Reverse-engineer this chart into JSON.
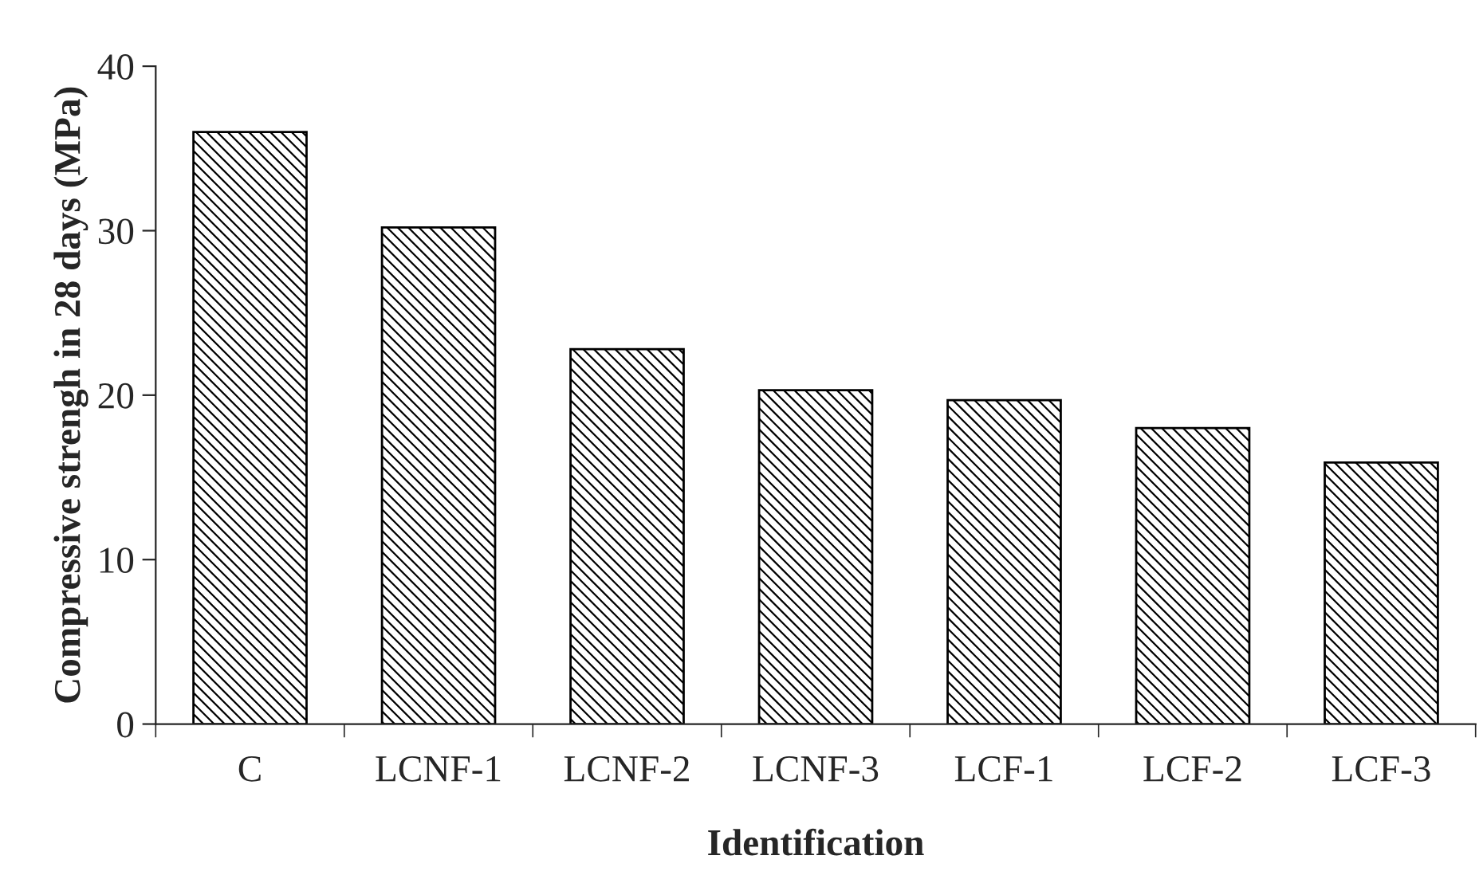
{
  "chart_data": {
    "type": "bar",
    "xlabel": "Identification",
    "ylabel": "Compressive strengh in 28 days (MPa)",
    "categories": [
      "C",
      "LCNF-1",
      "LCNF-2",
      "LCNF-3",
      "LCF-1",
      "LCF-2",
      "LCF-3"
    ],
    "values": [
      36.0,
      30.2,
      22.8,
      20.3,
      19.7,
      18.0,
      15.9
    ],
    "color": "#000000",
    "ylim": [
      0,
      40
    ],
    "yticks": [
      0,
      10,
      20,
      30,
      40
    ],
    "grid": false
  }
}
